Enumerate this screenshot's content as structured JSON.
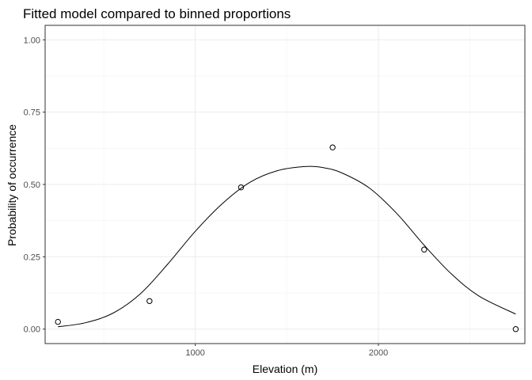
{
  "chart_data": {
    "type": "scatter",
    "title": "Fitted model compared to binned proportions",
    "xlabel": "Elevation (m)",
    "ylabel": "Probability of occurrence",
    "xlim": [
      180,
      2800
    ],
    "ylim": [
      -0.05,
      1.05
    ],
    "x_ticks": [
      1000,
      2000
    ],
    "x_minor_ticks": [
      500,
      1500,
      2500
    ],
    "y_ticks": [
      0.0,
      0.25,
      0.5,
      0.75,
      1.0
    ],
    "y_tick_labels": [
      "0.00",
      "0.25",
      "0.50",
      "0.75",
      "1.00"
    ],
    "grid": true,
    "series": [
      {
        "kind": "points",
        "x": [
          250,
          750,
          1250,
          1750,
          2250,
          2750
        ],
        "y": [
          0.025,
          0.097,
          0.49,
          0.628,
          0.275,
          0.0
        ]
      },
      {
        "kind": "line",
        "x": [
          250,
          400,
          550,
          700,
          850,
          1000,
          1150,
          1300,
          1450,
          1600,
          1700,
          1800,
          1950,
          2100,
          2250,
          2400,
          2550,
          2750
        ],
        "y": [
          0.008,
          0.022,
          0.055,
          0.122,
          0.225,
          0.338,
          0.435,
          0.508,
          0.548,
          0.562,
          0.558,
          0.54,
          0.488,
          0.4,
          0.29,
          0.19,
          0.114,
          0.052
        ]
      }
    ]
  }
}
